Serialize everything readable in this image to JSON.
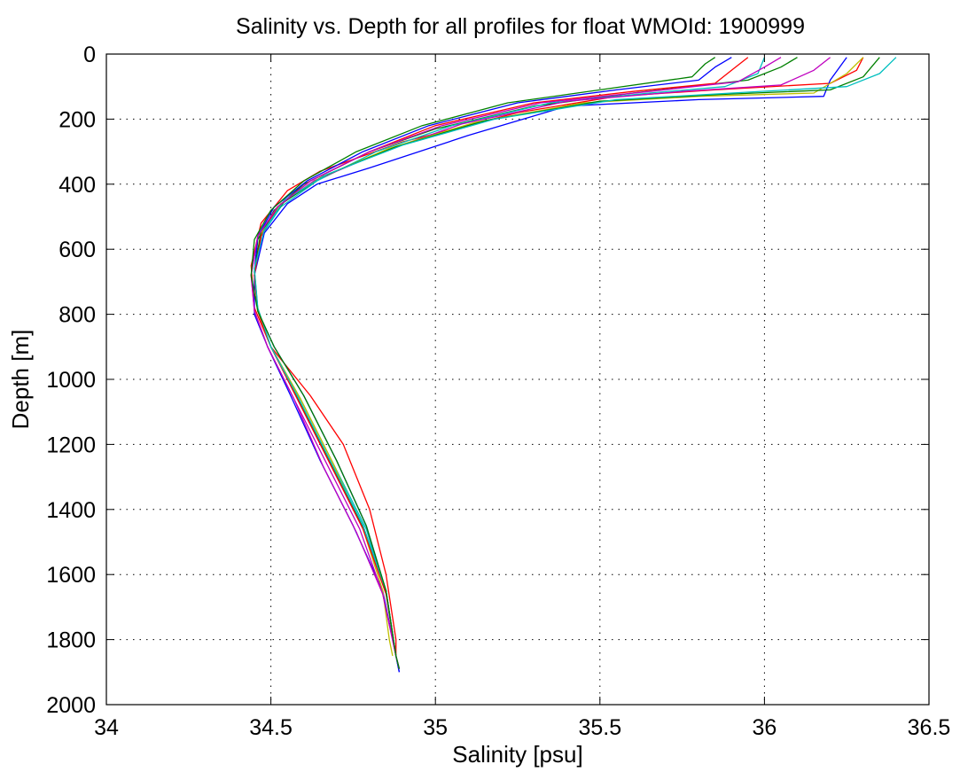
{
  "chart_data": {
    "type": "line",
    "title": "Salinity vs. Depth for all profiles for float WMOId: 1900999",
    "xlabel": "Salinity [psu]",
    "ylabel": "Depth [m]",
    "xlim": [
      34,
      36.5
    ],
    "ylim": [
      2000,
      0
    ],
    "y_reversed": true,
    "grid": true,
    "grid_style": "dotted",
    "legend": "none",
    "xticks": [
      "34",
      "34.5",
      "35",
      "35.5",
      "36",
      "36.5"
    ],
    "yticks": [
      "0",
      "200",
      "400",
      "600",
      "800",
      "1000",
      "1200",
      "1400",
      "1600",
      "1800",
      "2000"
    ],
    "series_colors": [
      "#0000ff",
      "#008000",
      "#ff0000",
      "#00bfbf",
      "#bf00bf",
      "#bfbf00"
    ],
    "series": [
      {
        "color": "#ff0000",
        "x": [
          36.3,
          36.28,
          36.2,
          35.85,
          35.55,
          35.25,
          34.9,
          34.65,
          34.55,
          34.47,
          34.44,
          34.45,
          34.5,
          34.62,
          34.72,
          34.8,
          34.85,
          34.88,
          34.88
        ],
        "y": [
          10,
          50,
          90,
          110,
          130,
          180,
          270,
          360,
          420,
          520,
          650,
          780,
          900,
          1050,
          1200,
          1400,
          1600,
          1800,
          1850
        ]
      },
      {
        "color": "#0000ff",
        "x": [
          36.25,
          36.2,
          36.18,
          35.8,
          35.4,
          35.1,
          34.8,
          34.64,
          34.55,
          34.48,
          34.45,
          34.45,
          34.49,
          34.56,
          34.65,
          34.75,
          34.84,
          34.88,
          34.89
        ],
        "y": [
          10,
          80,
          130,
          140,
          160,
          250,
          350,
          400,
          460,
          550,
          680,
          800,
          900,
          1050,
          1250,
          1450,
          1650,
          1850,
          1900
        ]
      },
      {
        "color": "#008000",
        "x": [
          36.1,
          36.05,
          35.95,
          35.6,
          35.3,
          35.0,
          34.8,
          34.6,
          34.51,
          34.46,
          34.45,
          34.46,
          34.5,
          34.58,
          34.68,
          34.78,
          34.85,
          34.88,
          34.89
        ],
        "y": [
          10,
          40,
          80,
          120,
          160,
          230,
          300,
          400,
          480,
          570,
          680,
          790,
          900,
          1050,
          1250,
          1450,
          1650,
          1850,
          1890
        ]
      },
      {
        "color": "#00bfbf",
        "x": [
          36.0,
          35.98,
          35.88,
          35.65,
          35.35,
          35.05,
          34.82,
          34.64,
          34.53,
          34.47,
          34.45,
          34.46,
          34.5,
          34.59,
          34.69,
          34.79,
          34.85,
          34.88,
          34.89
        ],
        "y": [
          10,
          60,
          100,
          120,
          150,
          220,
          300,
          390,
          470,
          560,
          680,
          790,
          900,
          1060,
          1260,
          1460,
          1660,
          1850,
          1890
        ]
      },
      {
        "color": "#bf00bf",
        "x": [
          36.2,
          36.15,
          36.05,
          35.75,
          35.4,
          35.08,
          34.84,
          34.63,
          34.52,
          34.46,
          34.44,
          34.45,
          34.49,
          34.57,
          34.66,
          34.76,
          34.84,
          34.88,
          34.89
        ],
        "y": [
          10,
          50,
          95,
          115,
          145,
          215,
          300,
          390,
          470,
          560,
          680,
          790,
          900,
          1060,
          1270,
          1470,
          1660,
          1850,
          1890
        ]
      },
      {
        "color": "#bfbf00",
        "x": [
          36.3,
          36.25,
          36.15,
          35.8,
          35.45,
          35.12,
          34.86,
          34.65,
          34.53,
          34.47,
          34.45,
          34.46,
          34.5,
          34.59,
          34.69,
          34.78,
          34.84,
          34.86,
          34.87
        ],
        "y": [
          10,
          60,
          120,
          130,
          150,
          210,
          290,
          380,
          460,
          550,
          670,
          790,
          900,
          1060,
          1260,
          1460,
          1650,
          1800,
          1850
        ]
      },
      {
        "color": "#0000ff",
        "x": [
          35.9,
          35.85,
          35.8,
          35.55,
          35.25,
          34.98,
          34.78,
          34.61,
          34.51,
          34.46,
          34.45,
          34.46,
          34.51,
          34.6,
          34.7,
          34.79,
          34.85,
          34.88,
          34.89
        ],
        "y": [
          10,
          40,
          80,
          110,
          150,
          220,
          300,
          390,
          470,
          560,
          670,
          790,
          900,
          1050,
          1250,
          1450,
          1650,
          1850,
          1900
        ]
      },
      {
        "color": "#008000",
        "x": [
          36.35,
          36.3,
          36.2,
          35.85,
          35.5,
          35.15,
          34.88,
          34.66,
          34.54,
          34.47,
          34.45,
          34.46,
          34.5,
          34.58,
          34.68,
          34.78,
          34.85,
          34.88,
          34.89
        ],
        "y": [
          10,
          70,
          110,
          125,
          145,
          205,
          285,
          375,
          455,
          545,
          665,
          785,
          900,
          1055,
          1255,
          1455,
          1655,
          1850,
          1890
        ]
      },
      {
        "color": "#ff0000",
        "x": [
          35.95,
          35.9,
          35.85,
          35.6,
          35.3,
          35.0,
          34.8,
          34.62,
          34.52,
          34.47,
          34.45,
          34.46,
          34.5,
          34.58,
          34.68,
          34.78,
          34.85,
          34.88,
          34.89
        ],
        "y": [
          10,
          50,
          90,
          115,
          150,
          220,
          300,
          390,
          470,
          560,
          680,
          790,
          900,
          1060,
          1260,
          1460,
          1660,
          1850,
          1890
        ]
      },
      {
        "color": "#00bfbf",
        "x": [
          36.4,
          36.35,
          36.25,
          35.9,
          35.55,
          35.18,
          34.9,
          34.67,
          34.54,
          34.48,
          34.45,
          34.46,
          34.5,
          34.58,
          34.68,
          34.78,
          34.85,
          34.88,
          34.89
        ],
        "y": [
          10,
          60,
          100,
          120,
          140,
          200,
          280,
          370,
          450,
          540,
          660,
          780,
          900,
          1050,
          1250,
          1450,
          1650,
          1850,
          1890
        ]
      },
      {
        "color": "#bf00bf",
        "x": [
          36.05,
          36.0,
          35.92,
          35.65,
          35.32,
          35.02,
          34.8,
          34.62,
          34.52,
          34.46,
          34.44,
          34.45,
          34.49,
          34.57,
          34.67,
          34.77,
          34.84,
          34.88,
          34.89
        ],
        "y": [
          10,
          40,
          85,
          115,
          150,
          220,
          300,
          390,
          470,
          560,
          680,
          790,
          900,
          1060,
          1260,
          1460,
          1660,
          1850,
          1890
        ]
      },
      {
        "color": "#008000",
        "x": [
          35.85,
          35.82,
          35.78,
          35.5,
          35.22,
          34.96,
          34.76,
          34.6,
          34.5,
          34.45,
          34.44,
          34.46,
          34.51,
          34.6,
          34.7,
          34.79,
          34.85,
          34.88,
          34.89
        ],
        "y": [
          10,
          30,
          70,
          110,
          150,
          220,
          300,
          390,
          480,
          570,
          680,
          790,
          900,
          1050,
          1250,
          1450,
          1650,
          1850,
          1890
        ]
      }
    ]
  }
}
